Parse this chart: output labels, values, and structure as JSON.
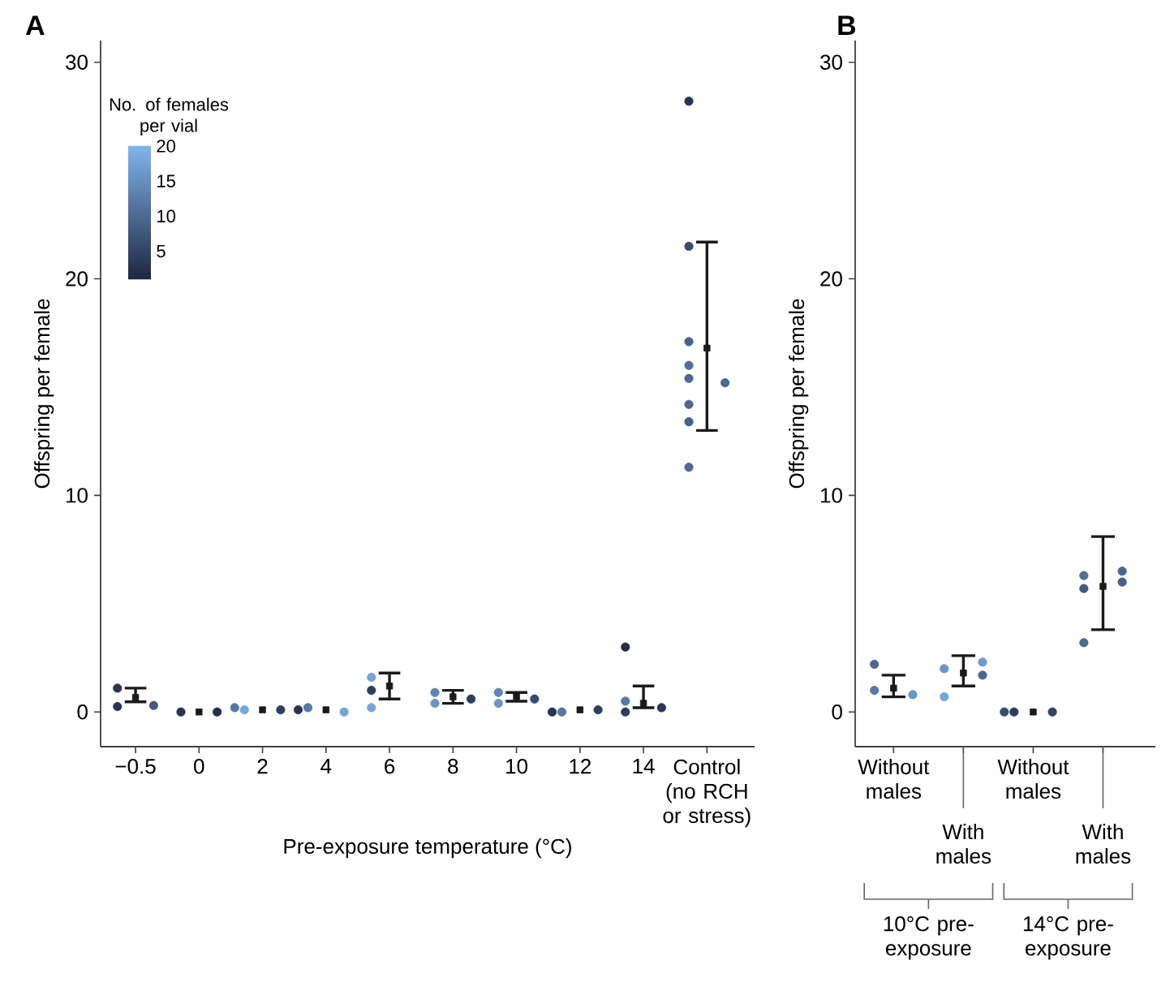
{
  "chart_data": [
    {
      "type": "scatter",
      "title": "A",
      "xlabel": "Pre-exposure temperature (°C)",
      "ylabel": "Offspring per female",
      "categories": [
        "−0.5",
        "0",
        "2",
        "4",
        "6",
        "8",
        "10",
        "12",
        "14",
        "Control (no RCH or stress)"
      ],
      "ylim": [
        -1.6,
        31
      ],
      "yticks": [
        0,
        10,
        20,
        30
      ],
      "clabel": "No. of females per vial",
      "annotations": [
        "5",
        "10",
        "15",
        "20"
      ],
      "series": [
        {
          "marker": "circle",
          "values": [
            1.1,
            0,
            0.1,
            0.2,
            0.2,
            0.4,
            0.9,
            0,
            3.0,
            28.2
          ],
          "colors": [
            "#283654",
            "#283654",
            "#76a4d8",
            "#5778a3",
            "#76a4d8",
            "#6b95c7",
            "#6186b5",
            "#5778a3",
            "#232f4b",
            "#283654"
          ]
        },
        {
          "marker": "circle",
          "values": [
            0.25,
            0,
            0.1,
            0,
            1.6,
            0.9,
            0.4,
            0.1,
            0,
            21.5
          ],
          "colors": [
            "#283654",
            "#232f4b",
            "#2e3e5d",
            "#76a4d8",
            "#76a4d8",
            "#6186b5",
            "#6b95c7",
            "#2e3e5d",
            "#2e3e5d",
            "#384c6e"
          ]
        },
        {
          "marker": "circle",
          "values": [
            0.3,
            null,
            0.2,
            0.1,
            1.0,
            0.6,
            0.6,
            0,
            0.5,
            17.1
          ],
          "colors": [
            "#425b80",
            null,
            "#5778a3",
            "#283654",
            "#2e3e5d",
            "#2e3e5d",
            "#384c6e",
            "#283654",
            "#5778a3",
            "#476289"
          ]
        },
        {
          "marker": "circle",
          "values": [
            null,
            null,
            null,
            null,
            null,
            null,
            null,
            null,
            0.2,
            16.0
          ],
          "colors": [
            null,
            null,
            null,
            null,
            null,
            null,
            null,
            null,
            "#283654",
            "#52719a"
          ]
        },
        {
          "marker": "circle",
          "values": [
            null,
            null,
            null,
            null,
            null,
            null,
            null,
            null,
            null,
            15.4
          ],
          "colors": [
            null,
            null,
            null,
            null,
            null,
            null,
            null,
            null,
            null,
            "#4c6992"
          ]
        },
        {
          "marker": "circle",
          "values": [
            null,
            null,
            null,
            null,
            null,
            null,
            null,
            null,
            null,
            15.2
          ],
          "colors": [
            null,
            null,
            null,
            null,
            null,
            null,
            null,
            null,
            null,
            "#4c6992"
          ]
        },
        {
          "marker": "circle",
          "values": [
            null,
            null,
            null,
            null,
            null,
            null,
            null,
            null,
            null,
            14.2
          ],
          "colors": [
            null,
            null,
            null,
            null,
            null,
            null,
            null,
            null,
            null,
            "#4c6992"
          ]
        },
        {
          "marker": "circle",
          "values": [
            null,
            null,
            null,
            null,
            null,
            null,
            null,
            null,
            null,
            13.4
          ],
          "colors": [
            null,
            null,
            null,
            null,
            null,
            null,
            null,
            null,
            null,
            "#476289"
          ]
        },
        {
          "marker": "circle",
          "values": [
            null,
            null,
            null,
            null,
            null,
            null,
            null,
            null,
            null,
            11.3
          ],
          "colors": [
            null,
            null,
            null,
            null,
            null,
            null,
            null,
            null,
            null,
            "#4c6992"
          ]
        },
        {
          "marker": "square",
          "color": "#1a1a1a",
          "values": [
            0.67,
            0,
            0.1,
            0.1,
            1.2,
            0.7,
            0.7,
            0.1,
            0.4,
            16.8
          ],
          "errors": [
            [
              0.47,
              1.1
            ],
            null,
            null,
            null,
            [
              0.6,
              1.8
            ],
            [
              0.4,
              1.0
            ],
            [
              0.5,
              0.9
            ],
            null,
            [
              0.2,
              1.2
            ],
            [
              13.0,
              21.7
            ]
          ]
        }
      ]
    },
    {
      "type": "scatter",
      "title": "B",
      "ylabel": "Offspring per female",
      "categories": [
        "Without males",
        "With males",
        "Without males",
        "With males"
      ],
      "ylim": [
        -1.6,
        31
      ],
      "yticks": [
        0,
        10,
        20,
        30
      ],
      "annotations": [
        "10°C pre-exposure",
        "14°C pre-exposure"
      ],
      "series": [
        {
          "marker": "circle",
          "values": [
            2.2,
            0.7,
            0,
            3.2
          ],
          "colors": [
            "#4c6992",
            "#76a4d8",
            "#2e3e5d",
            "#4c6992"
          ]
        },
        {
          "marker": "circle",
          "values": [
            1.0,
            2.0,
            0,
            6.3
          ],
          "colors": [
            "#5778a3",
            "#6b95c7",
            "#334565",
            "#52719a"
          ]
        },
        {
          "marker": "circle",
          "values": [
            null,
            2.3,
            null,
            6.5
          ],
          "colors": [
            null,
            "#719cd0",
            null,
            "#4c6992"
          ]
        },
        {
          "marker": "circle",
          "values": [
            0.8,
            1.7,
            0,
            6.0
          ],
          "colors": [
            "#6b95c7",
            "#4c6992",
            "#384c6e",
            "#476289"
          ]
        },
        {
          "marker": "circle",
          "values": [
            null,
            null,
            null,
            5.7
          ],
          "colors": [
            null,
            null,
            null,
            "#425b80"
          ]
        },
        {
          "marker": "square",
          "color": "#1a1a1a",
          "values": [
            1.1,
            1.8,
            0,
            5.8
          ],
          "errors": [
            [
              0.7,
              1.7
            ],
            [
              1.2,
              2.6
            ],
            null,
            [
              3.8,
              8.1
            ]
          ]
        }
      ]
    }
  ]
}
